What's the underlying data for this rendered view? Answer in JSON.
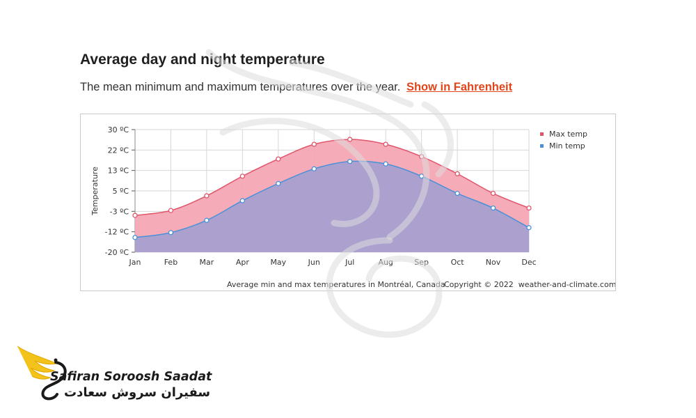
{
  "heading": {
    "title": "Average day and night temperature",
    "subtitle": "The mean minimum and maximum temperatures over the year.",
    "link": "Show in Fahrenheit"
  },
  "colors": {
    "max": "#e0556a",
    "max_fill": "#f4a8b4",
    "min": "#4a90d9",
    "min_fill": "#a8a0cf",
    "link": "#e0461c"
  },
  "chart_data": {
    "type": "area",
    "categories": [
      "Jan",
      "Feb",
      "Mar",
      "Apr",
      "May",
      "Jun",
      "Jul",
      "Aug",
      "Sep",
      "Oct",
      "Nov",
      "Dec"
    ],
    "series": [
      {
        "name": "Max temp",
        "values": [
          -5,
          -3,
          3,
          11,
          18,
          24,
          26,
          24,
          19,
          12,
          4,
          -2
        ]
      },
      {
        "name": "Min temp",
        "values": [
          -14,
          -12,
          -7,
          1,
          8,
          14,
          17,
          16,
          11,
          4,
          -2,
          -10
        ]
      }
    ],
    "yticks": [
      "30 ºC",
      "22 ºC",
      "13 ºC",
      "5 ºC",
      "-3 ºC",
      "-12 ºC",
      "-20 ºC"
    ],
    "ylim": [
      -20,
      30
    ],
    "ylabel": "Temperature",
    "xlabel": "",
    "grid": true,
    "legend_position": "top-right",
    "footer_left": "Average min and max temperatures in Montréal, Canada",
    "footer_right": "Copyright © 2022  weather-and-climate.com"
  },
  "branding": {
    "name_en": "Safiran Soroosh Saadat",
    "name_fa": "سفیران سروش سعادت"
  }
}
